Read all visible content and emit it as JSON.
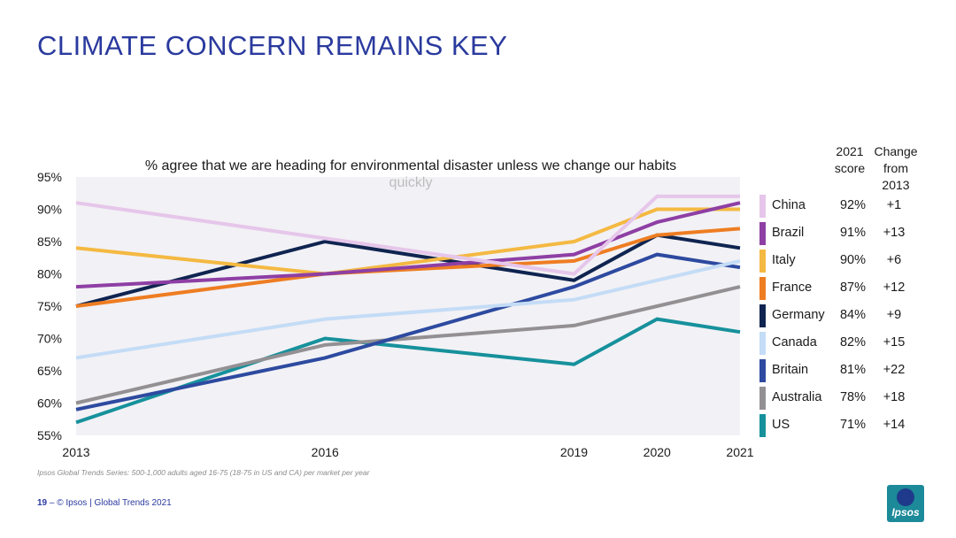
{
  "slide": {
    "title": "CLIMATE CONCERN REMAINS KEY",
    "footnote": "Ipsos Global Trends Series: 500-1,000 adults aged 16-75 (18-75 in US and CA) per market per year",
    "page_number": "19",
    "footer_sep": " – ",
    "footer_text": "© Ipsos | Global Trends 2021",
    "logo_text": "Ipsos"
  },
  "legend": {
    "header_score": "2021 score",
    "header_change": "Change from 2013"
  },
  "chart_data": {
    "type": "line",
    "title": "% agree that we are heading for environmental disaster unless we change our habits quickly",
    "x": [
      2013,
      2016,
      2019,
      2020,
      2021
    ],
    "x_tick_labels": [
      "2013",
      "2016",
      "2019",
      "2020",
      "2021"
    ],
    "ylim": [
      55,
      95
    ],
    "y_ticks": [
      55,
      60,
      65,
      70,
      75,
      80,
      85,
      90,
      95
    ],
    "y_tick_labels": [
      "55%",
      "60%",
      "65%",
      "70%",
      "75%",
      "80%",
      "85%",
      "90%",
      "95%"
    ],
    "xlabel": "",
    "ylabel": "",
    "legend_position": "right",
    "series": [
      {
        "name": "China",
        "color": "#e6c6ea",
        "values": [
          91,
          85.5,
          80,
          92,
          92
        ],
        "score_2021": "92%",
        "change": "+1"
      },
      {
        "name": "Brazil",
        "color": "#8e3fa4",
        "values": [
          78,
          80,
          83,
          88,
          91
        ],
        "score_2021": "91%",
        "change": "+13"
      },
      {
        "name": "Italy",
        "color": "#f4b942",
        "values": [
          84,
          80,
          85,
          90,
          90
        ],
        "score_2021": "90%",
        "change": "+6"
      },
      {
        "name": "France",
        "color": "#ee7d22",
        "values": [
          75,
          80,
          82,
          86,
          87
        ],
        "score_2021": "87%",
        "change": "+12"
      },
      {
        "name": "Germany",
        "color": "#0f2450",
        "values": [
          75,
          85,
          79,
          86,
          84
        ],
        "score_2021": "84%",
        "change": "+9"
      },
      {
        "name": "Canada",
        "color": "#c4dcf6",
        "values": [
          67,
          73,
          76,
          79,
          82
        ],
        "score_2021": "82%",
        "change": "+15"
      },
      {
        "name": "Britain",
        "color": "#2d4aa0",
        "values": [
          59,
          67,
          78,
          83,
          81
        ],
        "score_2021": "81%",
        "change": "+22"
      },
      {
        "name": "Australia",
        "color": "#939093",
        "values": [
          60,
          69,
          72,
          75,
          78
        ],
        "score_2021": "78%",
        "change": "+18"
      },
      {
        "name": "US",
        "color": "#16919c",
        "values": [
          57,
          70,
          66,
          73,
          71
        ],
        "score_2021": "71%",
        "change": "+14"
      }
    ]
  }
}
